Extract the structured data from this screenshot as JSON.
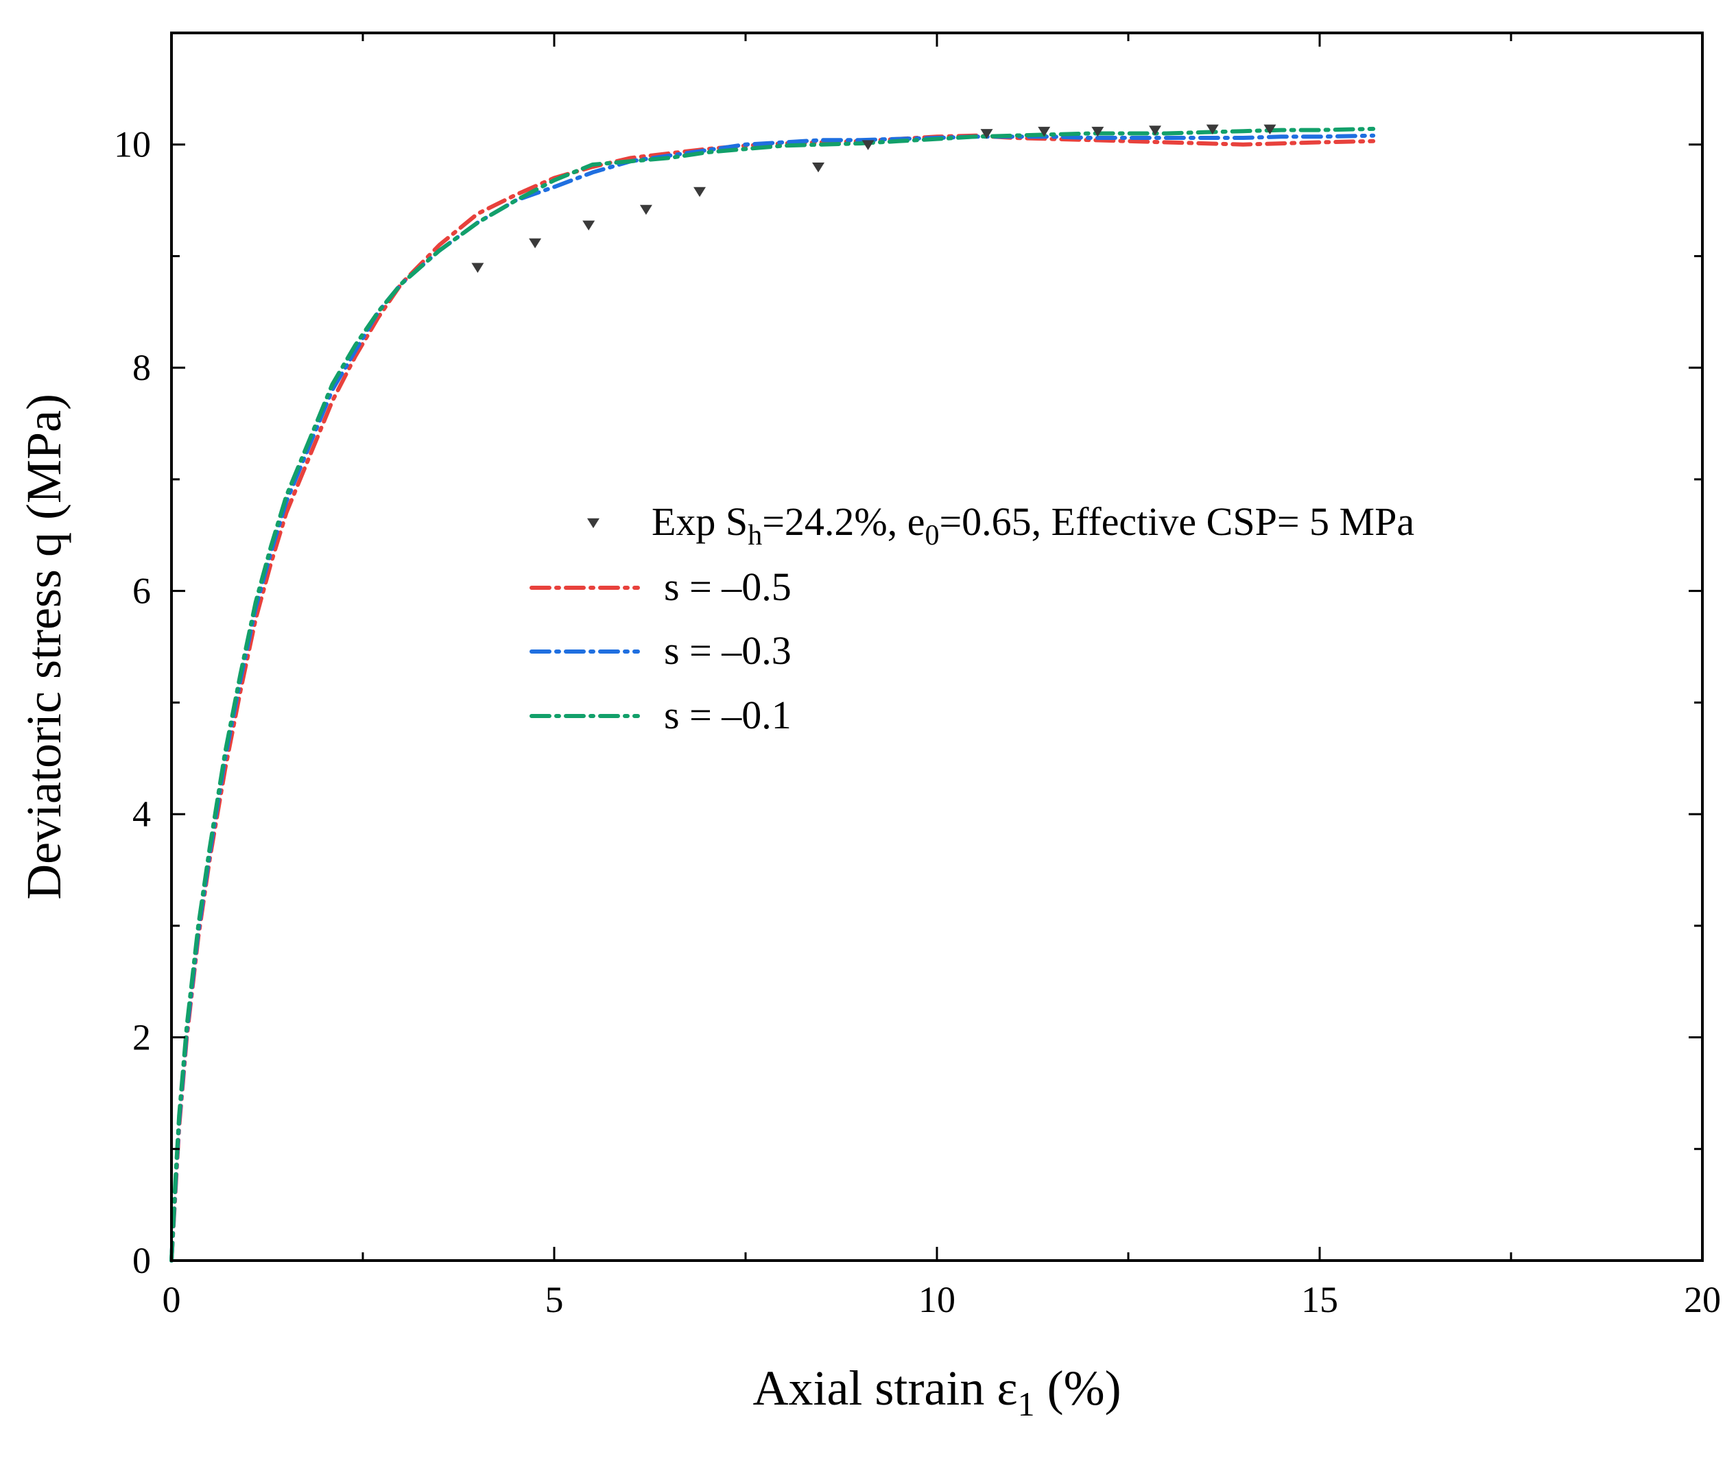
{
  "chart_data": {
    "type": "line",
    "title": "",
    "xlabel": "Axial strain ε",
    "xlabel_sub": "1",
    "xlabel_suffix": " (%)",
    "ylabel": "Deviatoric stress q (MPa)",
    "xlim": [
      0,
      20
    ],
    "ylim": [
      0,
      11
    ],
    "xticks": [
      0,
      5,
      10,
      15,
      20
    ],
    "yticks": [
      0,
      2,
      4,
      6,
      8,
      10
    ],
    "grid": false,
    "legend_position": "center-right",
    "experimental": {
      "name_parts": [
        "Exp S",
        "h",
        "=24.2%, e",
        "0",
        "=0.65, Effective CSP= 5 MPa"
      ],
      "marker": "triangle-down",
      "color": "#3a3a3a",
      "x": [
        4.0,
        4.75,
        5.45,
        6.2,
        6.9,
        8.45,
        9.1,
        10.65,
        11.4,
        12.1,
        12.85,
        13.6,
        14.35
      ],
      "y": [
        8.9,
        9.12,
        9.28,
        9.42,
        9.58,
        9.8,
        10.0,
        10.1,
        10.12,
        10.12,
        10.13,
        10.14,
        10.14
      ]
    },
    "series": [
      {
        "name": "s = –0.5",
        "color": "#e8413c",
        "x": [
          0,
          0.05,
          0.1,
          0.2,
          0.35,
          0.5,
          0.7,
          0.9,
          1.1,
          1.3,
          1.5,
          1.8,
          2.1,
          2.4,
          2.7,
          3.0,
          3.5,
          4.0,
          4.5,
          5.0,
          5.5,
          6.0,
          6.5,
          7.0,
          7.5,
          8.0,
          8.5,
          9.0,
          9.5,
          10.0,
          10.5,
          11.0,
          11.5,
          12.0,
          12.5,
          13.0,
          13.5,
          14.0,
          14.5,
          15.0,
          15.7
        ],
        "y": [
          0,
          0.6,
          1.2,
          2.0,
          2.9,
          3.6,
          4.4,
          5.1,
          5.75,
          6.25,
          6.7,
          7.2,
          7.7,
          8.1,
          8.45,
          8.75,
          9.1,
          9.38,
          9.55,
          9.7,
          9.8,
          9.88,
          9.92,
          9.96,
          9.99,
          10.01,
          10.02,
          10.03,
          10.05,
          10.07,
          10.08,
          10.06,
          10.05,
          10.04,
          10.03,
          10.02,
          10.01,
          10.0,
          10.01,
          10.02,
          10.03
        ]
      },
      {
        "name": "s = –0.3",
        "color": "#1f6fe0",
        "x": [
          0,
          0.05,
          0.1,
          0.2,
          0.35,
          0.5,
          0.7,
          0.9,
          1.1,
          1.3,
          1.5,
          1.8,
          2.1,
          2.4,
          2.7,
          3.0,
          3.5,
          4.0,
          4.5,
          5.0,
          5.5,
          6.0,
          6.5,
          7.0,
          7.5,
          8.0,
          8.5,
          9.0,
          9.5,
          10.0,
          10.5,
          11.0,
          11.5,
          12.0,
          12.5,
          13.0,
          13.5,
          14.0,
          14.5,
          15.0,
          15.7
        ],
        "y": [
          0,
          0.65,
          1.25,
          2.05,
          2.95,
          3.65,
          4.5,
          5.2,
          5.85,
          6.35,
          6.8,
          7.3,
          7.8,
          8.15,
          8.5,
          8.75,
          9.05,
          9.3,
          9.5,
          9.62,
          9.75,
          9.85,
          9.9,
          9.95,
          10.0,
          10.02,
          10.04,
          10.04,
          10.05,
          10.06,
          10.07,
          10.07,
          10.07,
          10.06,
          10.06,
          10.06,
          10.06,
          10.06,
          10.07,
          10.07,
          10.08
        ]
      },
      {
        "name": "s = –0.1",
        "color": "#12a06a",
        "x": [
          0,
          0.05,
          0.1,
          0.2,
          0.35,
          0.5,
          0.7,
          0.9,
          1.1,
          1.3,
          1.5,
          1.8,
          2.1,
          2.4,
          2.7,
          3.0,
          3.5,
          4.0,
          4.5,
          5.0,
          5.5,
          6.0,
          6.5,
          7.0,
          7.5,
          8.0,
          8.5,
          9.0,
          9.5,
          10.0,
          10.5,
          11.0,
          11.5,
          12.0,
          12.5,
          13.0,
          13.5,
          14.0,
          14.5,
          15.0,
          15.7
        ],
        "y": [
          0,
          0.7,
          1.3,
          2.1,
          3.0,
          3.7,
          4.55,
          5.25,
          5.9,
          6.4,
          6.85,
          7.35,
          7.85,
          8.2,
          8.5,
          8.75,
          9.05,
          9.3,
          9.5,
          9.68,
          9.82,
          9.85,
          9.88,
          9.93,
          9.96,
          9.99,
          10.0,
          10.01,
          10.03,
          10.05,
          10.07,
          10.08,
          10.09,
          10.1,
          10.1,
          10.1,
          10.11,
          10.12,
          10.13,
          10.13,
          10.14
        ]
      }
    ]
  }
}
